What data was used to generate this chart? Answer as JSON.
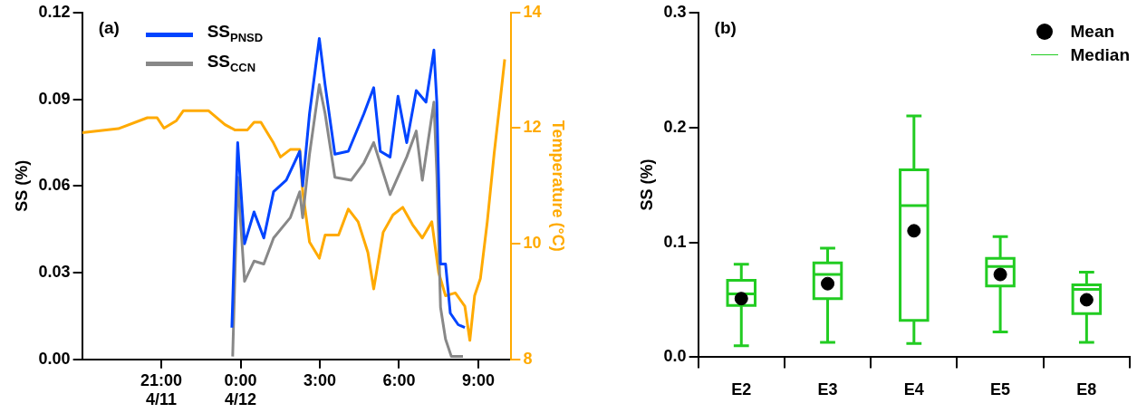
{
  "chart_data": [
    {
      "type": "line",
      "ylabel": "SS (%)",
      "y2label": "Temperature (°C)",
      "annotations": [
        "(a)"
      ],
      "legend": "top left",
      "grid": false,
      "xlim": [
        -6,
        10.25
      ],
      "xticks": [
        {
          "value": -3,
          "label": "21:00\n4/11"
        },
        {
          "value": 0,
          "label": "0:00\n4/12"
        },
        {
          "value": 3,
          "label": "3:00"
        },
        {
          "value": 6,
          "label": "6:00"
        },
        {
          "value": 9,
          "label": "9:00"
        }
      ],
      "ylim": [
        0,
        0.12
      ],
      "yticks": [
        {
          "value": 0,
          "label": "0.00"
        },
        0.03,
        0.06,
        0.09,
        0.12
      ],
      "y2lim": [
        8,
        14
      ],
      "y2ticks": [
        8,
        10,
        12,
        14
      ],
      "series": [
        {
          "name": "SS$_{PNSD}$",
          "color": "#0044ff",
          "x": [
            -0.33,
            -0.11,
            0.15,
            0.51,
            0.88,
            1.25,
            1.73,
            2.24,
            2.35,
            2.61,
            2.98,
            3.2,
            3.57,
            4.08,
            4.67,
            5.04,
            5.29,
            5.66,
            5.96,
            6.29,
            6.65,
            7.02,
            7.32,
            7.43,
            7.57,
            7.76,
            7.94,
            8.24,
            8.49
          ],
          "values": [
            0.011,
            0.075,
            0.04,
            0.051,
            0.042,
            0.058,
            0.062,
            0.072,
            0.06,
            0.085,
            0.111,
            0.095,
            0.071,
            0.072,
            0.085,
            0.094,
            0.072,
            0.07,
            0.091,
            0.075,
            0.093,
            0.089,
            0.107,
            0.089,
            0.033,
            0.033,
            0.016,
            0.012,
            0.011
          ]
        },
        {
          "name": "SS$_{CCN}$",
          "color": "#888888",
          "x": [
            -0.3,
            -0.11,
            0.15,
            0.51,
            0.88,
            1.25,
            1.88,
            2.24,
            2.35,
            2.61,
            2.98,
            3.2,
            3.57,
            4.19,
            4.67,
            5.04,
            5.66,
            6.29,
            6.65,
            6.88,
            7.32,
            7.43,
            7.57,
            7.76,
            7.98,
            8.42
          ],
          "values": [
            0.001,
            0.063,
            0.027,
            0.034,
            0.033,
            0.042,
            0.049,
            0.058,
            0.049,
            0.071,
            0.095,
            0.085,
            0.063,
            0.062,
            0.068,
            0.075,
            0.057,
            0.07,
            0.079,
            0.062,
            0.089,
            0.064,
            0.018,
            0.007,
            0.001,
            0.001
          ]
        },
        {
          "axis": "y2",
          "color": "#ffaa00",
          "x": [
            -6.0,
            -4.63,
            -3.53,
            -3.16,
            -2.9,
            -2.43,
            -2.17,
            -1.21,
            -0.59,
            -0.22,
            0.26,
            0.51,
            0.77,
            1.25,
            1.51,
            1.88,
            2.24,
            2.35,
            2.61,
            2.98,
            3.2,
            3.71,
            4.08,
            4.45,
            4.82,
            5.04,
            5.4,
            5.77,
            6.14,
            6.51,
            6.88,
            7.24,
            7.5,
            7.76,
            8.13,
            8.49,
            8.68,
            8.86,
            9.08,
            9.34,
            9.6,
            9.82,
            10.0
          ],
          "values": [
            11.92,
            11.99,
            12.18,
            12.18,
            12.0,
            12.13,
            12.3,
            12.3,
            12.06,
            11.97,
            11.97,
            12.1,
            12.1,
            11.74,
            11.5,
            11.63,
            11.63,
            10.91,
            10.03,
            9.75,
            10.15,
            10.15,
            10.6,
            10.38,
            9.85,
            9.22,
            10.2,
            10.5,
            10.63,
            10.33,
            10.1,
            10.38,
            9.5,
            9.1,
            9.15,
            8.92,
            8.33,
            9.1,
            9.4,
            10.38,
            11.56,
            12.44,
            13.19
          ]
        }
      ]
    },
    {
      "type": "box",
      "ylabel": "SS (%)",
      "annotations": [
        "(b)"
      ],
      "legend": "top right",
      "grid": false,
      "categories": [
        "E2",
        "E3",
        "E4",
        "E5",
        "E8"
      ],
      "ylim": [
        0,
        0.3
      ],
      "yticks": [
        {
          "value": 0,
          "label": "0.0"
        },
        0.1,
        0.2,
        0.3
      ],
      "series": [
        {
          "type": "scatter",
          "name": "Mean",
          "color": "#000000",
          "marker": "circle",
          "x": [
            "E2",
            "E3",
            "E4",
            "E5",
            "E8"
          ],
          "values": [
            0.051,
            0.064,
            0.11,
            0.072,
            0.05
          ]
        },
        {
          "type": "box",
          "name": "Median",
          "color": "#22cc22",
          "boxes": [
            {
              "low": 0.01,
              "q1": 0.045,
              "median": 0.055,
              "q3": 0.067,
              "high": 0.081
            },
            {
              "low": 0.013,
              "q1": 0.051,
              "median": 0.072,
              "q3": 0.082,
              "high": 0.095
            },
            {
              "low": 0.012,
              "q1": 0.032,
              "median": 0.132,
              "q3": 0.163,
              "high": 0.21
            },
            {
              "low": 0.022,
              "q1": 0.062,
              "median": 0.079,
              "q3": 0.086,
              "high": 0.105
            },
            {
              "low": 0.013,
              "q1": 0.038,
              "median": 0.059,
              "q3": 0.063,
              "high": 0.074
            }
          ]
        }
      ]
    }
  ]
}
